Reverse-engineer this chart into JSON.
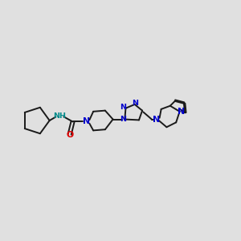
{
  "bg": "#e0e0e0",
  "bc": "#1a1a1a",
  "nc": "#0000cc",
  "nhc": "#008B8B",
  "oc": "#dd0000",
  "lw": 1.4,
  "fs": 6.8,
  "xlim": [
    0,
    10
  ],
  "ylim": [
    2,
    8
  ]
}
